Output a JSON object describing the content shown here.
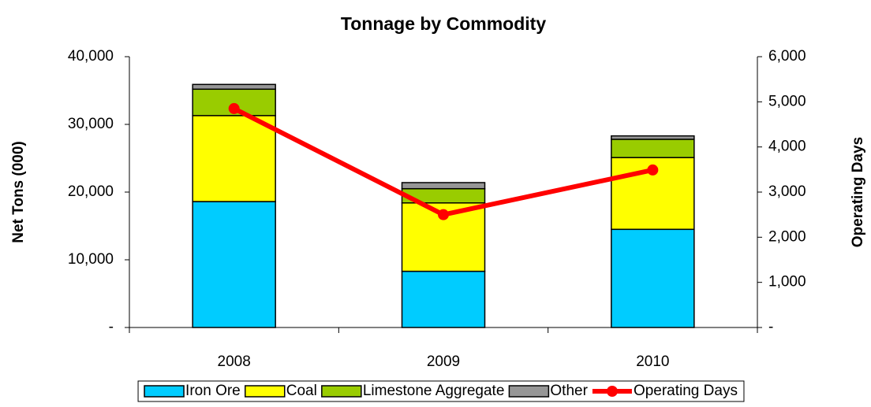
{
  "chart_data": {
    "type": "bar",
    "stacked": true,
    "title": "Tonnage by Commodity",
    "ylabel": "Net Tons (000)",
    "y2label": "Operating Days",
    "categories": [
      "2008",
      "2009",
      "2010"
    ],
    "series": [
      {
        "name": "Iron Ore",
        "color": "#00ccff",
        "values": [
          18600,
          8300,
          14500
        ]
      },
      {
        "name": "Coal",
        "color": "#ffff00",
        "values": [
          12700,
          10100,
          10600
        ]
      },
      {
        "name": "Limestone Aggregate",
        "color": "#99cc00",
        "values": [
          3900,
          2100,
          2700
        ]
      },
      {
        "name": "Other",
        "color": "#969696",
        "values": [
          700,
          900,
          500
        ]
      },
      {
        "name": "Operating Days",
        "type": "line",
        "axis": "y2",
        "color": "#ff0000",
        "values": [
          4850,
          2500,
          3490
        ]
      }
    ],
    "ylim": [
      0,
      40000
    ],
    "yticks": [
      {
        "value": 0,
        "label": "-"
      },
      {
        "value": 10000,
        "label": "10,000"
      },
      {
        "value": 20000,
        "label": "20,000"
      },
      {
        "value": 30000,
        "label": "30,000"
      },
      {
        "value": 40000,
        "label": "40,000"
      }
    ],
    "y2lim": [
      0,
      6000
    ],
    "y2ticks": [
      {
        "value": 0,
        "label": "-"
      },
      {
        "value": 1000,
        "label": "1,000"
      },
      {
        "value": 2000,
        "label": "2,000"
      },
      {
        "value": 3000,
        "label": "3,000"
      },
      {
        "value": 4000,
        "label": "4,000"
      },
      {
        "value": 5000,
        "label": "5,000"
      },
      {
        "value": 6000,
        "label": "6,000"
      }
    ],
    "legend": "bottom"
  }
}
